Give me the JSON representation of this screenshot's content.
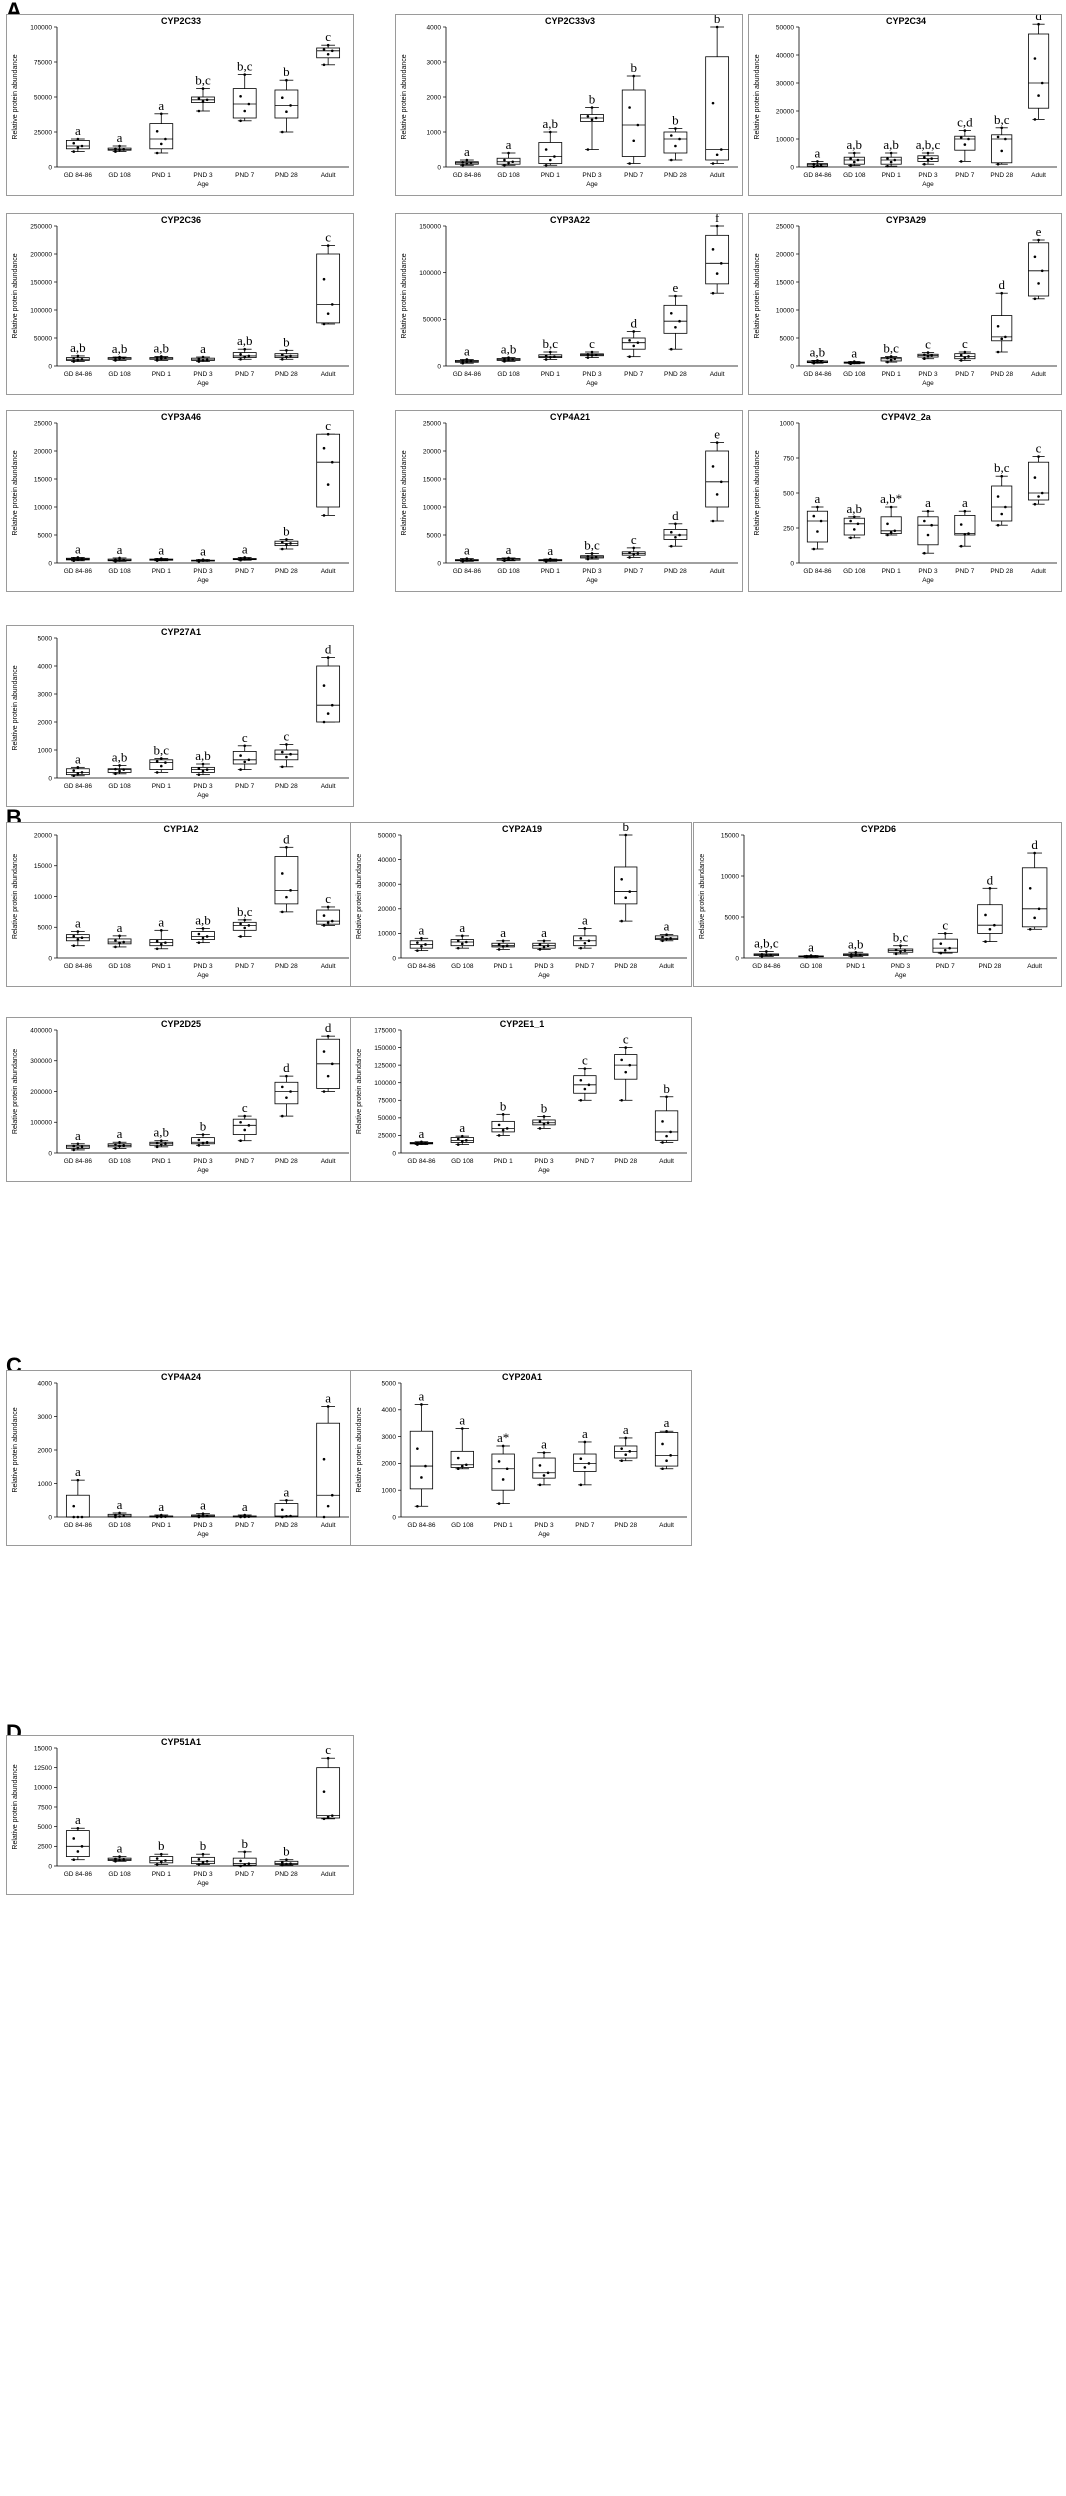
{
  "sections": [
    "A",
    "B",
    "C",
    "D"
  ],
  "y_axis_label": "Relative protein abundance",
  "x_axis_label": "Age",
  "categories": [
    "GD 84-86",
    "GD 108",
    "PND 1",
    "PND 3",
    "PND 7",
    "PND 28",
    "Adult"
  ],
  "chart_data": [
    {
      "type": "box",
      "section": "A",
      "title": "CYP2C33",
      "ylim": [
        0,
        100000
      ],
      "yticks": [
        0,
        25000,
        50000,
        75000,
        100000
      ],
      "boxes": [
        [
          11000,
          13000,
          15000,
          19000,
          20000
        ],
        [
          11000,
          12000,
          12500,
          13500,
          15000
        ],
        [
          10000,
          13000,
          20000,
          31000,
          38000
        ],
        [
          40000,
          46000,
          48000,
          50000,
          56000
        ],
        [
          33000,
          35000,
          45000,
          56000,
          66000
        ],
        [
          25000,
          35000,
          44000,
          55000,
          62000
        ],
        [
          73000,
          78000,
          83000,
          85000,
          87000
        ]
      ],
      "labels": [
        "a",
        "a",
        "a",
        "b,c",
        "b,c",
        "b",
        "c"
      ]
    },
    {
      "type": "box",
      "section": "A",
      "title": "CYP2C33v3",
      "ylim": [
        0,
        4000
      ],
      "yticks": [
        0,
        1000,
        2000,
        3000,
        4000
      ],
      "boxes": [
        [
          50,
          80,
          120,
          150,
          200
        ],
        [
          50,
          80,
          150,
          250,
          400
        ],
        [
          50,
          100,
          300,
          700,
          1000
        ],
        [
          500,
          1300,
          1400,
          1500,
          1700
        ],
        [
          100,
          300,
          1200,
          2200,
          2600
        ],
        [
          200,
          400,
          800,
          1000,
          1100
        ],
        [
          100,
          200,
          500,
          3150,
          4000
        ]
      ],
      "labels": [
        "a",
        "a",
        "a,b",
        "b",
        "b",
        "b",
        "b"
      ]
    },
    {
      "type": "box",
      "section": "A",
      "title": "CYP2C34",
      "ylim": [
        0,
        50000
      ],
      "yticks": [
        0,
        10000,
        20000,
        30000,
        40000,
        50000
      ],
      "boxes": [
        [
          100,
          300,
          800,
          1200,
          2000
        ],
        [
          500,
          1000,
          2500,
          3500,
          5000
        ],
        [
          300,
          1000,
          2500,
          3500,
          5000
        ],
        [
          1000,
          2000,
          3000,
          4000,
          5000
        ],
        [
          2000,
          6000,
          10000,
          11000,
          13000
        ],
        [
          1000,
          1500,
          10000,
          11500,
          14000
        ],
        [
          17000,
          21000,
          30000,
          47500,
          51000
        ]
      ],
      "labels": [
        "a",
        "a,b",
        "a,b",
        "a,b,c",
        "c,d",
        "b,c",
        "d"
      ]
    },
    {
      "type": "box",
      "section": "A",
      "title": "CYP2C36",
      "ylim": [
        0,
        250000
      ],
      "yticks": [
        0,
        50000,
        100000,
        150000,
        200000,
        250000
      ],
      "boxes": [
        [
          8000,
          10000,
          12000,
          15000,
          18000
        ],
        [
          10000,
          12000,
          14000,
          15000,
          16000
        ],
        [
          10000,
          12000,
          14000,
          15000,
          17000
        ],
        [
          8000,
          10000,
          11000,
          14000,
          16000
        ],
        [
          12000,
          15000,
          18000,
          24000,
          30000
        ],
        [
          12000,
          15000,
          18000,
          22000,
          28000
        ],
        [
          75000,
          77000,
          110000,
          200000,
          215000
        ]
      ],
      "labels": [
        "a,b",
        "a,b",
        "a,b",
        "a",
        "a,b",
        "b",
        "c"
      ]
    },
    {
      "type": "box",
      "section": "A",
      "title": "CYP3A22",
      "ylim": [
        0,
        150000
      ],
      "yticks": [
        0,
        50000,
        100000,
        150000
      ],
      "boxes": [
        [
          3000,
          4000,
          5000,
          6000,
          7000
        ],
        [
          5000,
          6000,
          7000,
          8000,
          9000
        ],
        [
          7000,
          9000,
          10000,
          12000,
          15000
        ],
        [
          9000,
          11000,
          12000,
          13000,
          15000
        ],
        [
          10000,
          18000,
          25000,
          30000,
          37000
        ],
        [
          18000,
          35000,
          48000,
          65000,
          75000
        ],
        [
          78000,
          88000,
          110000,
          140000,
          150000
        ]
      ],
      "labels": [
        "a",
        "a,b",
        "b,c",
        "c",
        "d",
        "e",
        "f"
      ]
    },
    {
      "type": "box",
      "section": "A",
      "title": "CYP3A29",
      "ylim": [
        0,
        25000
      ],
      "yticks": [
        0,
        5000,
        10000,
        15000,
        20000,
        25000
      ],
      "boxes": [
        [
          500,
          600,
          700,
          900,
          1000
        ],
        [
          400,
          500,
          600,
          700,
          800
        ],
        [
          700,
          900,
          1300,
          1500,
          1700
        ],
        [
          1300,
          1600,
          1900,
          2100,
          2400
        ],
        [
          1000,
          1300,
          1700,
          2200,
          2500
        ],
        [
          2500,
          4500,
          5200,
          9000,
          13000
        ],
        [
          12000,
          12500,
          17000,
          22000,
          22500
        ]
      ],
      "labels": [
        "a,b",
        "a",
        "b,c",
        "c",
        "c",
        "d",
        "e"
      ]
    },
    {
      "type": "box",
      "section": "A",
      "title": "CYP3A46",
      "ylim": [
        0,
        25000
      ],
      "yticks": [
        0,
        5000,
        10000,
        15000,
        20000,
        25000
      ],
      "boxes": [
        [
          400,
          550,
          700,
          850,
          1000
        ],
        [
          300,
          400,
          500,
          700,
          900
        ],
        [
          400,
          500,
          600,
          700,
          800
        ],
        [
          300,
          400,
          450,
          500,
          600
        ],
        [
          500,
          600,
          700,
          800,
          1000
        ],
        [
          2500,
          3100,
          3500,
          3900,
          4200
        ],
        [
          8500,
          10000,
          18000,
          23000,
          23000
        ]
      ],
      "labels": [
        "a",
        "a",
        "a",
        "a",
        "a",
        "b",
        "c"
      ]
    },
    {
      "type": "box",
      "section": "A",
      "title": "CYP4A21",
      "ylim": [
        0,
        25000
      ],
      "yticks": [
        0,
        5000,
        10000,
        15000,
        20000,
        25000
      ],
      "boxes": [
        [
          300,
          400,
          500,
          600,
          800
        ],
        [
          400,
          500,
          700,
          800,
          900
        ],
        [
          300,
          400,
          500,
          600,
          700
        ],
        [
          700,
          900,
          1100,
          1300,
          1700
        ],
        [
          1000,
          1400,
          1700,
          2000,
          2700
        ],
        [
          3000,
          4200,
          5000,
          6000,
          7000
        ],
        [
          7500,
          10000,
          14500,
          20000,
          21500
        ]
      ],
      "labels": [
        "a",
        "a",
        "a",
        "b,c",
        "c",
        "d",
        "e"
      ]
    },
    {
      "type": "box",
      "section": "A",
      "title": "CYP4V2_2a",
      "ylim": [
        0,
        1000
      ],
      "yticks": [
        0,
        250,
        500,
        750,
        1000
      ],
      "boxes": [
        [
          100,
          150,
          300,
          370,
          400
        ],
        [
          180,
          200,
          280,
          320,
          330
        ],
        [
          200,
          210,
          230,
          330,
          400
        ],
        [
          70,
          130,
          270,
          330,
          370
        ],
        [
          120,
          200,
          210,
          340,
          370
        ],
        [
          270,
          300,
          400,
          550,
          620
        ],
        [
          420,
          450,
          500,
          720,
          760
        ]
      ],
      "labels": [
        "a",
        "a,b",
        "a,b*",
        "a",
        "a",
        "b,c",
        "c"
      ]
    },
    {
      "type": "box",
      "section": "A",
      "title": "CYP27A1",
      "ylim": [
        0,
        5000
      ],
      "yticks": [
        0,
        1000,
        2000,
        3000,
        4000,
        5000
      ],
      "boxes": [
        [
          80,
          120,
          200,
          330,
          380
        ],
        [
          150,
          200,
          300,
          330,
          450
        ],
        [
          200,
          300,
          550,
          650,
          700
        ],
        [
          120,
          200,
          300,
          380,
          500
        ],
        [
          300,
          500,
          650,
          950,
          1150
        ],
        [
          400,
          650,
          850,
          1000,
          1200
        ],
        [
          2000,
          2000,
          2600,
          4000,
          4300
        ]
      ],
      "labels": [
        "a",
        "a,b",
        "b,c",
        "a,b",
        "c",
        "c",
        "d"
      ]
    },
    {
      "type": "box",
      "section": "B",
      "title": "CYP1A2",
      "ylim": [
        0,
        20000
      ],
      "yticks": [
        0,
        5000,
        10000,
        15000,
        20000
      ],
      "boxes": [
        [
          2000,
          2800,
          3300,
          3800,
          4300
        ],
        [
          1800,
          2300,
          2600,
          3100,
          3600
        ],
        [
          1500,
          2000,
          2500,
          3000,
          4500
        ],
        [
          2500,
          3000,
          3500,
          4300,
          4800
        ],
        [
          3500,
          4500,
          5300,
          5800,
          6200
        ],
        [
          7500,
          8800,
          11000,
          16500,
          18000
        ],
        [
          5300,
          5500,
          6000,
          7800,
          8300
        ]
      ],
      "labels": [
        "a",
        "a",
        "a",
        "a,b",
        "b,c",
        "d",
        "c"
      ]
    },
    {
      "type": "box",
      "section": "B",
      "title": "CYP2A19",
      "ylim": [
        0,
        50000
      ],
      "yticks": [
        0,
        10000,
        20000,
        30000,
        40000,
        50000
      ],
      "boxes": [
        [
          3000,
          4000,
          5500,
          7000,
          8000
        ],
        [
          4000,
          5000,
          6500,
          7500,
          9000
        ],
        [
          3500,
          4500,
          5000,
          6000,
          7000
        ],
        [
          3500,
          4000,
          5000,
          6000,
          7000
        ],
        [
          4000,
          5000,
          7000,
          9000,
          12000
        ],
        [
          15000,
          22000,
          27000,
          37000,
          50000
        ],
        [
          7000,
          7500,
          8000,
          9000,
          9500
        ]
      ],
      "labels": [
        "a",
        "a",
        "a",
        "a",
        "a",
        "b",
        "a"
      ]
    },
    {
      "type": "box",
      "section": "B",
      "title": "CYP2D6",
      "ylim": [
        0,
        15000
      ],
      "yticks": [
        0,
        5000,
        10000,
        15000
      ],
      "boxes": [
        [
          200,
          300,
          400,
          500,
          800
        ],
        [
          100,
          150,
          200,
          250,
          300
        ],
        [
          200,
          300,
          400,
          500,
          700
        ],
        [
          500,
          700,
          900,
          1100,
          1500
        ],
        [
          600,
          700,
          1200,
          2300,
          3000
        ],
        [
          2000,
          3000,
          4000,
          6500,
          8500
        ],
        [
          3500,
          3800,
          6000,
          11000,
          12800
        ]
      ],
      "labels": [
        "a,b,c",
        "a",
        "a,b",
        "b,c",
        "c",
        "d",
        "d"
      ]
    },
    {
      "type": "box",
      "section": "B",
      "title": "CYP2D25",
      "ylim": [
        0,
        400000
      ],
      "yticks": [
        0,
        100000,
        200000,
        300000,
        400000
      ],
      "boxes": [
        [
          10000,
          15000,
          20000,
          25000,
          30000
        ],
        [
          15000,
          20000,
          25000,
          30000,
          35000
        ],
        [
          20000,
          25000,
          30000,
          35000,
          40000
        ],
        [
          25000,
          30000,
          35000,
          50000,
          60000
        ],
        [
          40000,
          60000,
          90000,
          110000,
          120000
        ],
        [
          120000,
          160000,
          200000,
          230000,
          250000
        ],
        [
          200000,
          210000,
          290000,
          370000,
          380000
        ]
      ],
      "labels": [
        "a",
        "a",
        "a,b",
        "b",
        "c",
        "d",
        "d"
      ]
    },
    {
      "type": "box",
      "section": "B",
      "title": "CYP2E1_1",
      "ylim": [
        0,
        175000
      ],
      "yticks": [
        0,
        25000,
        50000,
        75000,
        100000,
        125000,
        150000,
        175000
      ],
      "boxes": [
        [
          12000,
          13000,
          14000,
          15000,
          16000
        ],
        [
          12000,
          15000,
          18000,
          22000,
          24000
        ],
        [
          25000,
          30000,
          35000,
          45000,
          55000
        ],
        [
          35000,
          40000,
          43000,
          47000,
          52000
        ],
        [
          75000,
          85000,
          97000,
          110000,
          120000
        ],
        [
          75000,
          105000,
          125000,
          140000,
          150000
        ],
        [
          15000,
          18000,
          30000,
          60000,
          80000
        ]
      ],
      "labels": [
        "a",
        "a",
        "b",
        "b",
        "c",
        "c",
        "b"
      ]
    },
    {
      "type": "box",
      "section": "C",
      "title": "CYP4A24",
      "ylim": [
        0,
        4000
      ],
      "yticks": [
        0,
        1000,
        2000,
        3000,
        4000
      ],
      "boxes": [
        [
          0,
          0,
          0,
          650,
          1100
        ],
        [
          0,
          0,
          30,
          80,
          120
        ],
        [
          0,
          0,
          10,
          30,
          60
        ],
        [
          0,
          10,
          30,
          60,
          100
        ],
        [
          0,
          0,
          10,
          30,
          60
        ],
        [
          0,
          10,
          30,
          400,
          500
        ],
        [
          0,
          0,
          650,
          2800,
          3300
        ]
      ],
      "labels": [
        "a",
        "a",
        "a",
        "a",
        "a",
        "a",
        "a"
      ]
    },
    {
      "type": "box",
      "section": "C",
      "title": "CYP20A1",
      "ylim": [
        0,
        5000
      ],
      "yticks": [
        0,
        1000,
        2000,
        3000,
        4000,
        5000
      ],
      "boxes": [
        [
          400,
          1050,
          1900,
          3200,
          4200
        ],
        [
          1800,
          1850,
          1950,
          2450,
          3300
        ],
        [
          500,
          1000,
          1800,
          2350,
          2650
        ],
        [
          1200,
          1450,
          1650,
          2200,
          2400
        ],
        [
          1200,
          1700,
          2000,
          2350,
          2800
        ],
        [
          2100,
          2200,
          2450,
          2650,
          2950
        ],
        [
          1800,
          1900,
          2300,
          3150,
          3200
        ]
      ],
      "labels": [
        "a",
        "a",
        "a*",
        "a",
        "a",
        "a",
        "a"
      ]
    },
    {
      "type": "box",
      "section": "D",
      "title": "CYP51A1",
      "ylim": [
        0,
        15000
      ],
      "yticks": [
        0,
        2500,
        5000,
        7500,
        10000,
        12500,
        15000
      ],
      "boxes": [
        [
          800,
          1200,
          2500,
          4500,
          4800
        ],
        [
          600,
          700,
          800,
          1000,
          1200
        ],
        [
          200,
          400,
          700,
          1200,
          1500
        ],
        [
          200,
          300,
          600,
          1100,
          1500
        ],
        [
          0,
          100,
          300,
          1000,
          1800
        ],
        [
          100,
          200,
          300,
          600,
          800
        ],
        [
          6000,
          6100,
          6400,
          12500,
          13700
        ]
      ],
      "labels": [
        "a",
        "a",
        "b",
        "b",
        "b",
        "b",
        "c"
      ]
    }
  ]
}
